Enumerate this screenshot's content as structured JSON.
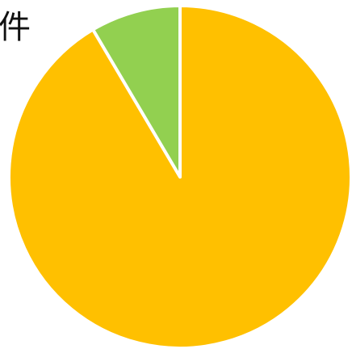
{
  "title_fragment": "件",
  "chart_data": {
    "type": "pie",
    "title": "件",
    "slices": [
      {
        "value": 91.5,
        "color": "#FFC000"
      },
      {
        "value": 8.5,
        "color": "#92D050"
      }
    ],
    "start_angle_deg": 0,
    "direction": "counterclockwise-from-top-reversed",
    "legend": "none"
  }
}
